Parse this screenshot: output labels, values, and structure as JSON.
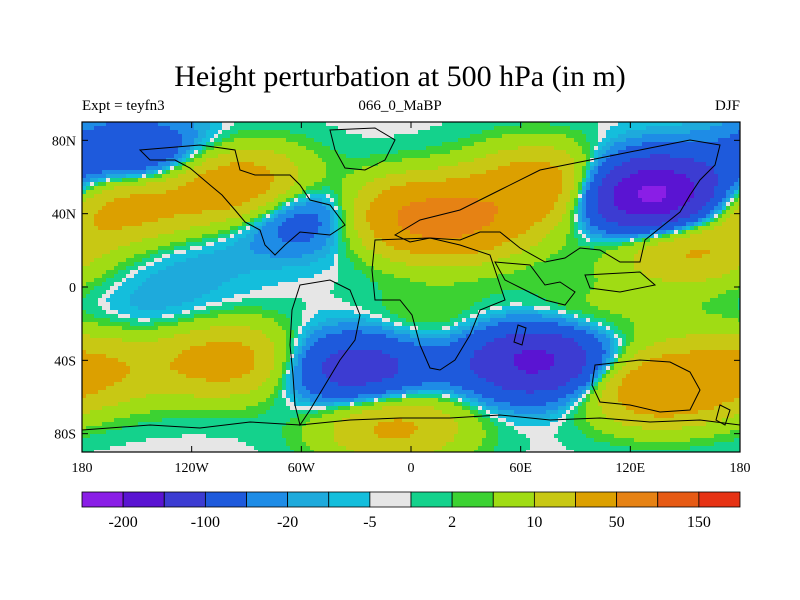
{
  "chart_data": {
    "type": "heatmap",
    "title": "Height perturbation at 500 hPa (in m)",
    "subtitle_left": "Expt = teyfn3",
    "subtitle_center": "066_0_MaBP",
    "subtitle_right": "DJF",
    "x_ticks": [
      "180",
      "120W",
      "60W",
      "0",
      "60E",
      "120E",
      "180"
    ],
    "y_ticks": [
      "80N",
      "40N",
      "0",
      "40S",
      "80S"
    ],
    "xlim": [
      -180,
      180
    ],
    "ylim": [
      -90,
      90
    ],
    "colorbar": {
      "labels": [
        "-200",
        "-100",
        "-20",
        "-5",
        "2",
        "10",
        "50",
        "150"
      ],
      "colors": [
        "#8a1ee6",
        "#5a14d2",
        "#3c3cd2",
        "#1e5adc",
        "#1e8ce6",
        "#1eaadc",
        "#14bedc",
        "#e6e6e6",
        "#14d28c",
        "#3cd232",
        "#a0dc14",
        "#c8c814",
        "#dca000",
        "#e68214",
        "#e65a14",
        "#e63214"
      ]
    },
    "field_blobs": [
      {
        "lon": -150,
        "lat": 70,
        "value": -60
      },
      {
        "lon": -160,
        "lat": 45,
        "value": 70
      },
      {
        "lon": -95,
        "lat": 55,
        "value": 90
      },
      {
        "lon": -120,
        "lat": 15,
        "value": -8
      },
      {
        "lon": -55,
        "lat": 40,
        "value": -60
      },
      {
        "lon": -10,
        "lat": 40,
        "value": 70
      },
      {
        "lon": 25,
        "lat": 35,
        "value": 90
      },
      {
        "lon": 75,
        "lat": 55,
        "value": 90
      },
      {
        "lon": 130,
        "lat": 50,
        "value": -180
      },
      {
        "lon": 150,
        "lat": 22,
        "value": 60
      },
      {
        "lon": 60,
        "lat": 85,
        "value": 1
      },
      {
        "lon": -70,
        "lat": 5,
        "value": 1
      },
      {
        "lon": -140,
        "lat": -15,
        "value": -10
      },
      {
        "lon": -100,
        "lat": -40,
        "value": 70
      },
      {
        "lon": -175,
        "lat": -45,
        "value": 50
      },
      {
        "lon": -30,
        "lat": -45,
        "value": -80
      },
      {
        "lon": 10,
        "lat": -20,
        "value": 15
      },
      {
        "lon": 70,
        "lat": -40,
        "value": -120
      },
      {
        "lon": 90,
        "lat": -20,
        "value": 20
      },
      {
        "lon": 135,
        "lat": -55,
        "value": 90
      },
      {
        "lon": 120,
        "lat": -10,
        "value": 1
      },
      {
        "lon": -10,
        "lat": -75,
        "value": 60
      },
      {
        "lon": 160,
        "lat": -20,
        "value": 5
      }
    ]
  }
}
